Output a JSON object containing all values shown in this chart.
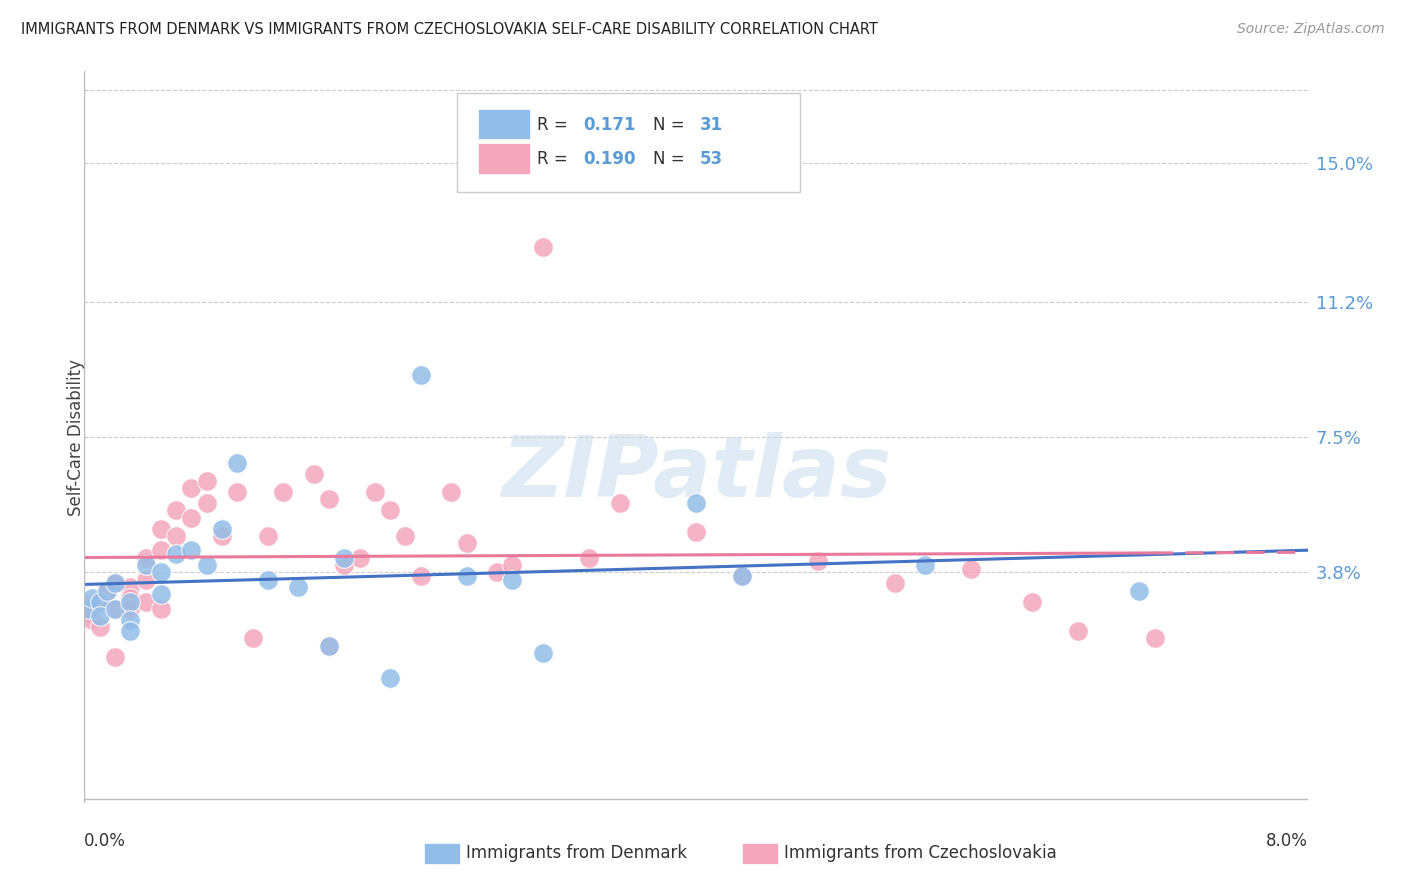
{
  "title": "IMMIGRANTS FROM DENMARK VS IMMIGRANTS FROM CZECHOSLOVAKIA SELF-CARE DISABILITY CORRELATION CHART",
  "source": "Source: ZipAtlas.com",
  "ylabel": "Self-Care Disability",
  "y_tick_labels": [
    "15.0%",
    "11.2%",
    "7.5%",
    "3.8%"
  ],
  "y_tick_values": [
    0.15,
    0.112,
    0.075,
    0.038
  ],
  "x_lim": [
    0.0,
    0.08
  ],
  "y_lim": [
    -0.025,
    0.175
  ],
  "color_blue": "#92BDE8",
  "color_pink": "#F4A7BC",
  "color_blue_line": "#4472C4",
  "color_pink_line": "#E8799A",
  "color_right_labels": "#5B9BD5",
  "color_grid": "#CCCCCC",
  "watermark_color": "#C8DCF0",
  "background_color": "#FFFFFF",
  "legend_box_color": "#FFFFFF",
  "legend_border_color": "#CCCCCC",
  "dk_x": [
    0.0003,
    0.0005,
    0.001,
    0.001,
    0.0015,
    0.002,
    0.002,
    0.003,
    0.003,
    0.003,
    0.004,
    0.005,
    0.005,
    0.006,
    0.007,
    0.008,
    0.009,
    0.01,
    0.012,
    0.014,
    0.016,
    0.017,
    0.02,
    0.022,
    0.025,
    0.028,
    0.03,
    0.04,
    0.043,
    0.055,
    0.069
  ],
  "dk_y": [
    0.028,
    0.031,
    0.03,
    0.026,
    0.033,
    0.028,
    0.035,
    0.03,
    0.025,
    0.022,
    0.04,
    0.038,
    0.032,
    0.043,
    0.044,
    0.04,
    0.05,
    0.068,
    0.036,
    0.034,
    0.018,
    0.042,
    0.009,
    0.092,
    0.037,
    0.036,
    0.016,
    0.057,
    0.037,
    0.04,
    0.033
  ],
  "cz_x": [
    0.0002,
    0.0003,
    0.0005,
    0.001,
    0.001,
    0.0015,
    0.002,
    0.002,
    0.002,
    0.003,
    0.003,
    0.003,
    0.004,
    0.004,
    0.004,
    0.005,
    0.005,
    0.005,
    0.006,
    0.006,
    0.007,
    0.007,
    0.008,
    0.008,
    0.009,
    0.01,
    0.011,
    0.012,
    0.013,
    0.015,
    0.016,
    0.016,
    0.017,
    0.018,
    0.019,
    0.02,
    0.021,
    0.022,
    0.024,
    0.025,
    0.027,
    0.028,
    0.03,
    0.033,
    0.035,
    0.04,
    0.043,
    0.048,
    0.053,
    0.058,
    0.062,
    0.065,
    0.07
  ],
  "cz_y": [
    0.029,
    0.027,
    0.025,
    0.03,
    0.023,
    0.033,
    0.035,
    0.015,
    0.028,
    0.034,
    0.031,
    0.028,
    0.042,
    0.036,
    0.03,
    0.05,
    0.044,
    0.028,
    0.055,
    0.048,
    0.061,
    0.053,
    0.063,
    0.057,
    0.048,
    0.06,
    0.02,
    0.048,
    0.06,
    0.065,
    0.018,
    0.058,
    0.04,
    0.042,
    0.06,
    0.055,
    0.048,
    0.037,
    0.06,
    0.046,
    0.038,
    0.04,
    0.127,
    0.042,
    0.057,
    0.049,
    0.037,
    0.041,
    0.035,
    0.039,
    0.03,
    0.022,
    0.02
  ]
}
